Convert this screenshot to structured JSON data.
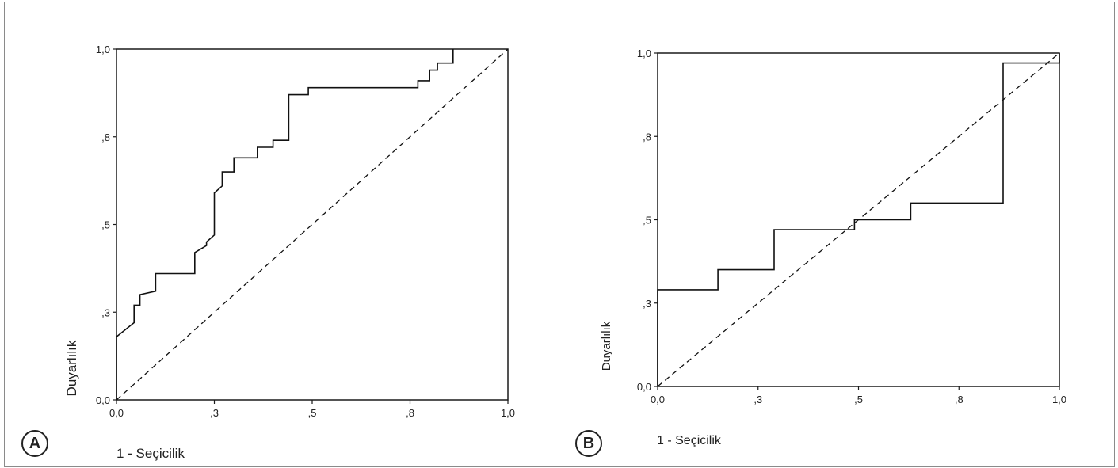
{
  "panels": [
    {
      "label": "A",
      "chart_data": {
        "type": "line",
        "xlabel": "1 - Seçicilik",
        "ylabel": "Duyarlılık",
        "xlim": [
          0,
          1
        ],
        "ylim": [
          0,
          1
        ],
        "grid": false,
        "xticks": [
          0,
          0.25,
          0.5,
          0.75,
          1.0
        ],
        "xtick_labels": [
          "0,0",
          ",3",
          ",5",
          ",8",
          "1,0"
        ],
        "yticks": [
          0,
          0.25,
          0.5,
          0.75,
          1.0
        ],
        "ytick_labels": [
          "0,0",
          ",3",
          ",5",
          ",8",
          "1,0"
        ],
        "series": [
          {
            "style": "solid",
            "x": [
              0.0,
              0.0,
              0.045,
              0.045,
              0.06,
              0.06,
              0.1,
              0.1,
              0.2,
              0.2,
              0.23,
              0.23,
              0.25,
              0.25,
              0.27,
              0.27,
              0.3,
              0.3,
              0.36,
              0.36,
              0.4,
              0.4,
              0.44,
              0.44,
              0.49,
              0.49,
              0.77,
              0.77,
              0.8,
              0.8,
              0.82,
              0.82,
              0.86,
              0.86
            ],
            "y": [
              0.0,
              0.18,
              0.22,
              0.27,
              0.27,
              0.3,
              0.31,
              0.36,
              0.36,
              0.42,
              0.44,
              0.45,
              0.47,
              0.59,
              0.61,
              0.65,
              0.65,
              0.69,
              0.69,
              0.72,
              0.72,
              0.74,
              0.74,
              0.87,
              0.87,
              0.89,
              0.89,
              0.91,
              0.91,
              0.94,
              0.94,
              0.96,
              0.96,
              1.0
            ]
          },
          {
            "style": "dashed",
            "x": [
              0,
              1
            ],
            "y": [
              0,
              1
            ]
          }
        ]
      }
    },
    {
      "label": "B",
      "chart_data": {
        "type": "line",
        "xlabel": "1 - Seçicilik",
        "ylabel": "Duyarlılık",
        "xlim": [
          0,
          1
        ],
        "ylim": [
          0,
          1
        ],
        "grid": false,
        "xticks": [
          0,
          0.25,
          0.5,
          0.75,
          1.0
        ],
        "xtick_labels": [
          "0,0",
          ",3",
          ",5",
          ",8",
          "1,0"
        ],
        "yticks": [
          0,
          0.25,
          0.5,
          0.75,
          1.0
        ],
        "ytick_labels": [
          "0,0",
          ",3",
          ",5",
          ",8",
          "1,0"
        ],
        "series": [
          {
            "style": "solid",
            "x": [
              0.0,
              0.0,
              0.15,
              0.15,
              0.29,
              0.29,
              0.49,
              0.49,
              0.63,
              0.63,
              0.86,
              0.86,
              1.0,
              1.0
            ],
            "y": [
              0.0,
              0.29,
              0.29,
              0.35,
              0.35,
              0.47,
              0.47,
              0.5,
              0.5,
              0.55,
              0.55,
              0.97,
              0.97,
              1.0
            ]
          },
          {
            "style": "dashed",
            "x": [
              0,
              1
            ],
            "y": [
              0,
              1
            ]
          }
        ]
      }
    }
  ]
}
